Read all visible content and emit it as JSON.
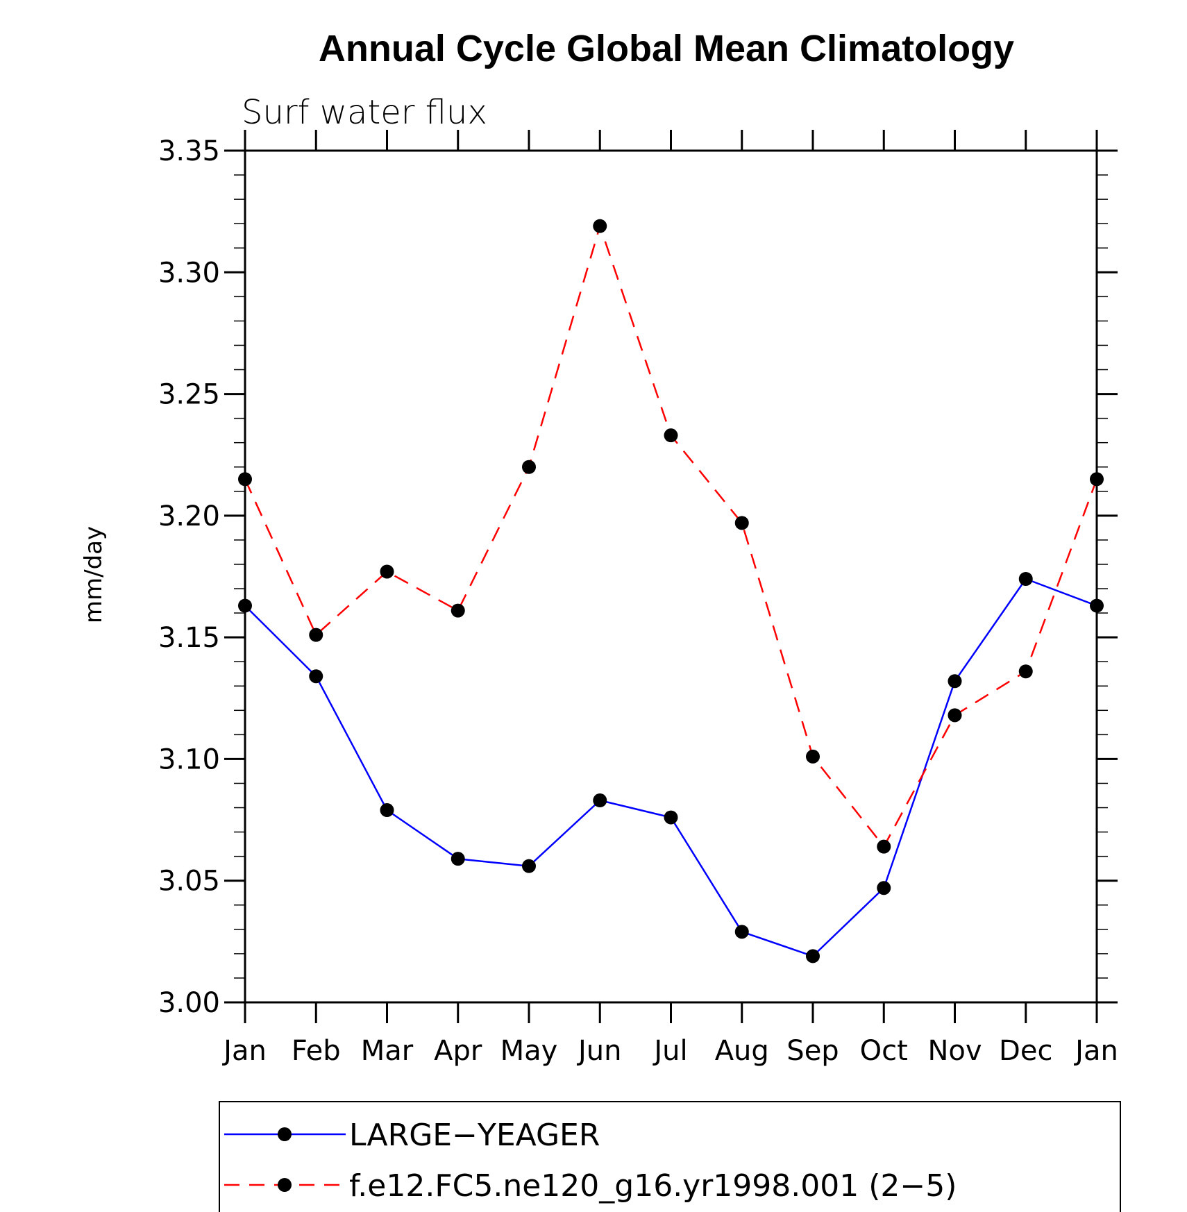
{
  "chart_data": {
    "type": "line",
    "title": "Annual Cycle Global Mean Climatology",
    "subtitle": "Surf water flux",
    "xlabel": "",
    "ylabel": "mm/day",
    "categories": [
      "Jan",
      "Feb",
      "Mar",
      "Apr",
      "May",
      "Jun",
      "Jul",
      "Aug",
      "Sep",
      "Oct",
      "Nov",
      "Dec",
      "Jan"
    ],
    "ylim": [
      3.0,
      3.35
    ],
    "yticks": [
      "3.00",
      "3.05",
      "3.10",
      "3.15",
      "3.20",
      "3.25",
      "3.30",
      "3.35"
    ],
    "series": [
      {
        "name": "LARGE−YEAGER",
        "color": "#0000ff",
        "dash": "solid",
        "values": [
          3.163,
          3.134,
          3.079,
          3.059,
          3.056,
          3.083,
          3.076,
          3.029,
          3.019,
          3.047,
          3.132,
          3.174,
          3.163
        ]
      },
      {
        "name": "f.e12.FC5.ne120_g16.yr1998.001 (2−5)",
        "color": "#ff0000",
        "dash": "dashed",
        "values": [
          3.215,
          3.151,
          3.177,
          3.161,
          3.22,
          3.319,
          3.233,
          3.197,
          3.101,
          3.064,
          3.118,
          3.136,
          3.215
        ]
      }
    ],
    "legend_position": "bottom"
  }
}
